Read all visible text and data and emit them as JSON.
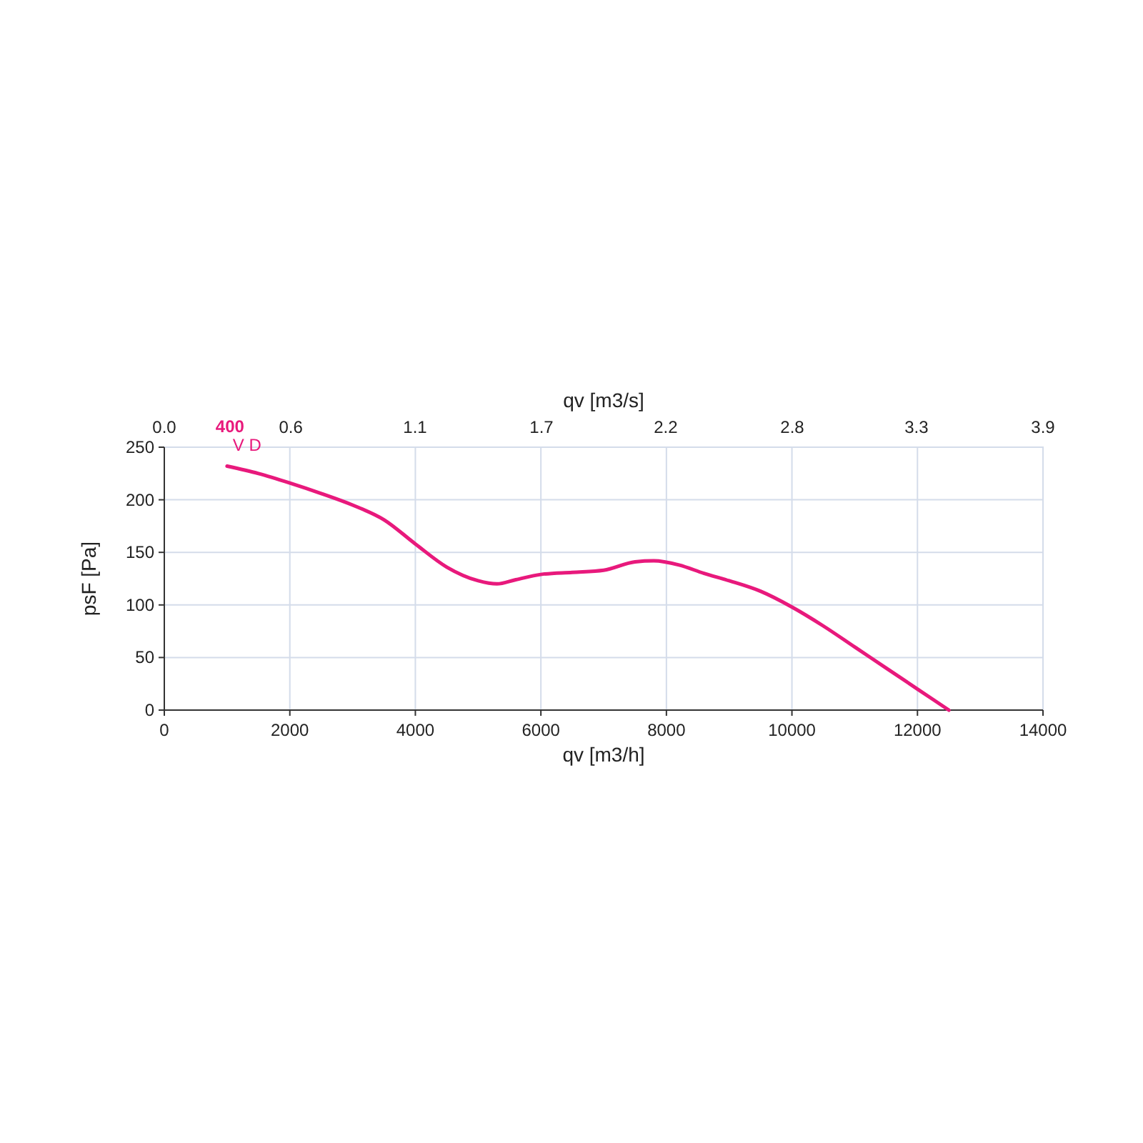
{
  "chart_data": {
    "type": "line",
    "xlabel": "qv [m3/h]",
    "ylabel": "psF [Pa]",
    "x2label": "qv [m3/s]",
    "annotations": [
      "400",
      "V D"
    ],
    "x": [
      1000,
      1500,
      2000,
      2500,
      3000,
      3500,
      4000,
      4500,
      5000,
      5300,
      5600,
      6000,
      6500,
      7000,
      7500,
      7800,
      8200,
      8600,
      9000,
      9500,
      10000,
      10500,
      11000,
      11500,
      12000,
      12500
    ],
    "series": [
      {
        "color": "#e8197c",
        "values": [
          232,
          225,
          216,
          206,
          195,
          181,
          158,
          136,
          123,
          120,
          124,
          129,
          131,
          133,
          141,
          142,
          138,
          130,
          123,
          113,
          98,
          80,
          60,
          40,
          20,
          0
        ]
      }
    ],
    "xlim": [
      0,
      14000
    ],
    "xticks": [
      0,
      2000,
      4000,
      6000,
      8000,
      10000,
      12000,
      14000
    ],
    "ylim": [
      0,
      250
    ],
    "yticks": [
      0,
      50,
      100,
      150,
      200,
      250
    ],
    "x2lim": [
      0,
      3.89
    ],
    "x2ticks": [
      {
        "value": 0,
        "label": "0.0"
      },
      {
        "value": 0.56,
        "label": "0.6"
      },
      {
        "value": 1.11,
        "label": "1.1"
      },
      {
        "value": 1.67,
        "label": "1.7"
      },
      {
        "value": 2.22,
        "label": "2.2"
      },
      {
        "value": 2.78,
        "label": "2.8"
      },
      {
        "value": 3.33,
        "label": "3.3"
      },
      {
        "value": 3.89,
        "label": "3.9"
      }
    ],
    "grid": true,
    "marker": "none",
    "line_style": "solid"
  }
}
